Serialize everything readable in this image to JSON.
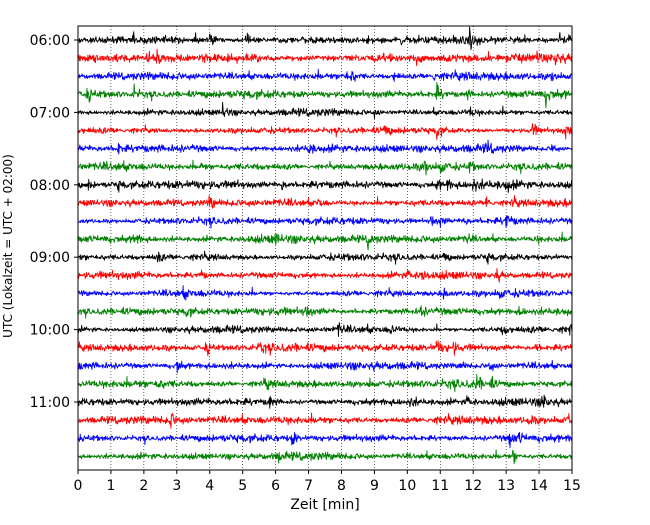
{
  "chart_data": {
    "type": "line",
    "title": "",
    "xlabel": "Zeit  [min]",
    "ylabel": "UTC (Lokalzeit = UTC + 02:00)",
    "xlim": [
      0,
      15
    ],
    "x_ticks": [
      "0",
      "1",
      "2",
      "3",
      "4",
      "5",
      "6",
      "7",
      "8",
      "9",
      "10",
      "11",
      "12",
      "13",
      "14",
      "15"
    ],
    "y_ticks": [
      "06:00",
      "07:00",
      "08:00",
      "09:00",
      "10:00",
      "11:00"
    ],
    "grid": "vertical dotted at each minute",
    "colors": [
      "#000000",
      "#ff0000",
      "#0000ff",
      "#008000"
    ],
    "traces_per_hour": 4,
    "trace_minutes": 15,
    "traces": [
      {
        "start": "06:00",
        "color": "#000000",
        "noise": 0.33,
        "events": [
          [
            4.0,
            1.0
          ],
          [
            5.1,
            0.8
          ],
          [
            8.8,
            0.6
          ],
          [
            9.8,
            0.5
          ],
          [
            11.9,
            1.0
          ],
          [
            14.6,
            0.9
          ],
          [
            14.9,
            0.7
          ]
        ]
      },
      {
        "start": "06:15",
        "color": "#ff0000",
        "noise": 0.4,
        "events": [
          [
            2.1,
            0.6
          ],
          [
            2.4,
            1.0
          ],
          [
            10.2,
            0.4
          ],
          [
            13.9,
            0.5
          ],
          [
            14.5,
            0.8
          ]
        ]
      },
      {
        "start": "06:30",
        "color": "#0000ff",
        "noise": 0.36,
        "events": [
          [
            8.1,
            0.8
          ],
          [
            8.3,
            0.7
          ],
          [
            9.6,
            0.8
          ],
          [
            10.8,
            0.6
          ],
          [
            14.4,
            0.6
          ]
        ]
      },
      {
        "start": "06:45",
        "color": "#008000",
        "noise": 0.38,
        "events": [
          [
            0.3,
            0.9
          ],
          [
            1.7,
            0.9
          ],
          [
            10.9,
            0.9
          ],
          [
            11.8,
            0.5
          ],
          [
            14.2,
            1.0
          ]
        ]
      },
      {
        "start": "07:00",
        "color": "#000000",
        "noise": 0.32,
        "events": [
          [
            4.4,
            1.0
          ],
          [
            9.0,
            0.4
          ],
          [
            11.9,
            0.5
          ]
        ]
      },
      {
        "start": "07:15",
        "color": "#ff0000",
        "noise": 0.3,
        "events": [
          [
            9.3,
            0.7
          ],
          [
            10.9,
            1.0
          ],
          [
            13.8,
            0.9
          ],
          [
            14.8,
            0.9
          ]
        ]
      },
      {
        "start": "07:30",
        "color": "#0000ff",
        "noise": 0.36,
        "events": [
          [
            1.2,
            0.7
          ],
          [
            7.0,
            0.8
          ],
          [
            12.4,
            0.7
          ],
          [
            14.4,
            0.8
          ]
        ]
      },
      {
        "start": "07:45",
        "color": "#008000",
        "noise": 0.34,
        "events": [
          [
            3.7,
            0.4
          ],
          [
            10.5,
            0.9
          ],
          [
            11.0,
            0.8
          ],
          [
            11.9,
            0.6
          ]
        ]
      },
      {
        "start": "08:00",
        "color": "#000000",
        "noise": 0.38,
        "events": [
          [
            0.3,
            0.6
          ],
          [
            1.2,
            0.6
          ],
          [
            4.7,
            0.4
          ],
          [
            6.2,
            0.5
          ],
          [
            10.9,
            0.6
          ],
          [
            11.2,
            0.6
          ],
          [
            12.0,
            0.6
          ],
          [
            13.0,
            0.6
          ]
        ]
      },
      {
        "start": "08:15",
        "color": "#ff0000",
        "noise": 0.34,
        "events": [
          [
            4.0,
            1.0
          ],
          [
            7.3,
            0.5
          ],
          [
            12.4,
            1.0
          ],
          [
            13.2,
            0.5
          ]
        ]
      },
      {
        "start": "08:30",
        "color": "#0000ff",
        "noise": 0.34,
        "events": [
          [
            10.7,
            0.8
          ],
          [
            11.0,
            0.6
          ],
          [
            11.7,
            0.6
          ],
          [
            13.0,
            0.9
          ]
        ]
      },
      {
        "start": "08:45",
        "color": "#008000",
        "noise": 0.38,
        "events": [
          [
            1.7,
            1.0
          ],
          [
            6.0,
            0.4
          ],
          [
            8.8,
            0.8
          ],
          [
            11.8,
            0.5
          ],
          [
            13.9,
            0.4
          ]
        ]
      },
      {
        "start": "09:00",
        "color": "#000000",
        "noise": 0.32,
        "events": [
          [
            2.4,
            0.7
          ],
          [
            11.1,
            0.6
          ],
          [
            12.4,
            0.6
          ],
          [
            14.4,
            0.4
          ]
        ]
      },
      {
        "start": "09:15",
        "color": "#ff0000",
        "noise": 0.32,
        "events": [
          [
            3.7,
            0.6
          ],
          [
            10.0,
            0.7
          ],
          [
            10.4,
            1.0
          ],
          [
            12.7,
            0.8
          ]
        ]
      },
      {
        "start": "09:30",
        "color": "#0000ff",
        "noise": 0.3,
        "events": [
          [
            3.2,
            0.5
          ],
          [
            11.1,
            0.8
          ],
          [
            12.8,
            0.5
          ]
        ]
      },
      {
        "start": "09:45",
        "color": "#008000",
        "noise": 0.36,
        "events": [
          [
            3.3,
            0.6
          ],
          [
            6.9,
            0.6
          ],
          [
            10.4,
            0.6
          ],
          [
            13.4,
            0.5
          ]
        ]
      },
      {
        "start": "10:00",
        "color": "#000000",
        "noise": 0.32,
        "events": [
          [
            7.9,
            0.7
          ],
          [
            9.5,
            0.6
          ],
          [
            12.9,
            0.6
          ],
          [
            14.9,
            0.5
          ]
        ]
      },
      {
        "start": "10:15",
        "color": "#ff0000",
        "noise": 0.38,
        "events": [
          [
            3.9,
            1.0
          ],
          [
            5.5,
            0.8
          ],
          [
            10.9,
            0.9
          ],
          [
            11.4,
            0.6
          ],
          [
            13.9,
            0.6
          ]
        ]
      },
      {
        "start": "10:30",
        "color": "#0000ff",
        "noise": 0.34,
        "events": [
          [
            3.0,
            0.9
          ],
          [
            11.6,
            0.6
          ],
          [
            12.5,
            0.8
          ]
        ]
      },
      {
        "start": "10:45",
        "color": "#008000",
        "noise": 0.36,
        "events": [
          [
            2.4,
            0.7
          ],
          [
            5.7,
            0.5
          ],
          [
            8.8,
            0.6
          ],
          [
            12.1,
            1.0
          ],
          [
            12.5,
            0.8
          ]
        ]
      },
      {
        "start": "11:00",
        "color": "#000000",
        "noise": 0.34,
        "events": [
          [
            5.8,
            0.9
          ],
          [
            10.1,
            0.5
          ],
          [
            11.8,
            0.9
          ],
          [
            14.1,
            0.9
          ]
        ]
      },
      {
        "start": "11:15",
        "color": "#ff0000",
        "noise": 0.38,
        "events": [
          [
            2.8,
            1.0
          ],
          [
            13.7,
            0.6
          ],
          [
            14.9,
            0.7
          ]
        ]
      },
      {
        "start": "11:30",
        "color": "#0000ff",
        "noise": 0.34,
        "events": [
          [
            6.5,
            1.0
          ],
          [
            13.1,
            1.0
          ],
          [
            13.4,
            0.6
          ]
        ]
      },
      {
        "start": "11:45",
        "color": "#008000",
        "noise": 0.34,
        "events": [
          [
            6.1,
            0.4
          ],
          [
            13.2,
            1.0
          ]
        ]
      }
    ]
  }
}
